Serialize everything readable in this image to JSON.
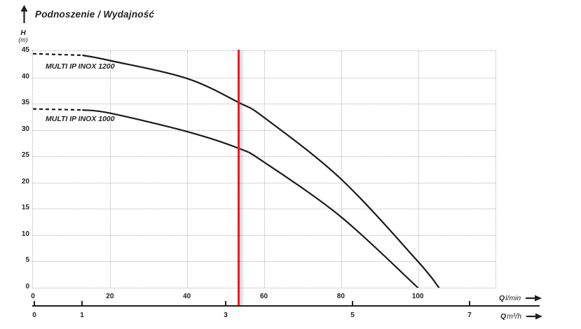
{
  "title": "Podnoszenie / Wydajność",
  "y_axis": {
    "symbol": "H",
    "unit": "(m)",
    "ticks": [
      "45",
      "40",
      "35",
      "30",
      "25",
      "20",
      "15",
      "10",
      "5",
      "0"
    ]
  },
  "x_axis_lmin": {
    "ticks": [
      "0",
      "20",
      "40",
      "60",
      "80",
      "100"
    ],
    "q_symbol": "Q",
    "unit": "l/min"
  },
  "x_axis_m3h": {
    "ticks": [
      "0",
      "1",
      "3",
      "5",
      "7"
    ],
    "q_symbol": "Q",
    "unit": "m³/h"
  },
  "colors": {
    "curve": "#1a1a1a",
    "grid": "#b3b3b3",
    "text": "#231f20",
    "red_line": "#ed1c24"
  },
  "chart_data": {
    "type": "line",
    "title": "Podnoszenie / Wydajność",
    "ylabel": "H (m)",
    "xlabel_primary": "Q l/min",
    "xlabel_secondary": "Q m³/h",
    "ylim": [
      0,
      45
    ],
    "xlim_lmin": [
      0,
      120
    ],
    "y_ticks": [
      0,
      5,
      10,
      15,
      20,
      25,
      30,
      35,
      40,
      45
    ],
    "x_ticks_lmin": [
      0,
      20,
      40,
      60,
      80,
      100
    ],
    "x_ticks_m3h": [
      0,
      1,
      3,
      5,
      7
    ],
    "grid": "dotted",
    "legend_position": "labels-on-curves",
    "red_marker_q_lmin": 53.5,
    "series": [
      {
        "name": "MULTI IP INOX 1200",
        "dashed_until_q": 13,
        "points_q_lmin_h_m": [
          [
            0,
            44.5
          ],
          [
            13,
            44.2
          ],
          [
            20,
            43.2
          ],
          [
            40,
            39.8
          ],
          [
            53.5,
            35.2
          ],
          [
            60,
            32.4
          ],
          [
            80,
            20.7
          ],
          [
            100,
            5
          ],
          [
            105.5,
            0
          ]
        ]
      },
      {
        "name": "MULTI IP INOX 1000",
        "dashed_until_q": 13,
        "points_q_lmin_h_m": [
          [
            0,
            34
          ],
          [
            13,
            33.8
          ],
          [
            20,
            33.2
          ],
          [
            40,
            29.7
          ],
          [
            53.5,
            26.5
          ],
          [
            60,
            23.9
          ],
          [
            80,
            13.5
          ],
          [
            100,
            0
          ]
        ]
      }
    ]
  }
}
